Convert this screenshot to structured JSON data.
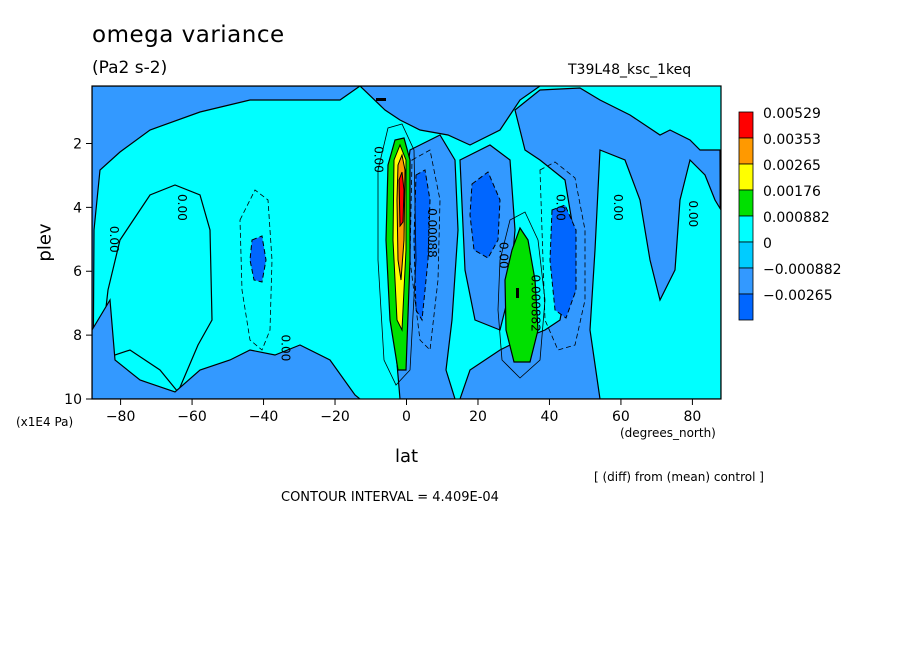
{
  "header": {
    "title": "omega variance",
    "units": "(Pa2 s-2)",
    "run": "T39L48_ksc_1keq"
  },
  "footer": {
    "diff_note": "[ (diff) from (mean) control ]",
    "contour_interval": "CONTOUR INTERVAL = 4.409E-04"
  },
  "chart_data": {
    "type": "contour",
    "xlabel": "lat",
    "xunits": "(degrees_north)",
    "ylabel": "plev",
    "yscale_label": "(x1E4 Pa)",
    "xlim": [
      -88,
      88
    ],
    "ylim": [
      10,
      0.2
    ],
    "x_ticks": [
      -80,
      -60,
      -40,
      -20,
      0,
      20,
      40,
      60,
      80
    ],
    "y_ticks": [
      2,
      4,
      6,
      8,
      10
    ],
    "contour_labels": [
      {
        "text": "0.00",
        "lat": -83,
        "plev": 5.0
      },
      {
        "text": "0.00",
        "lat": -64,
        "plev": 4.0
      },
      {
        "text": "0.00",
        "lat": -9,
        "plev": 2.5
      },
      {
        "text": "0.00",
        "lat": -35,
        "plev": 8.4
      },
      {
        "text": "0.00088",
        "lat": 6,
        "plev": 4.8
      },
      {
        "text": "0.00",
        "lat": 26,
        "plev": 5.5
      },
      {
        "text": "0.00",
        "lat": 42,
        "plev": 4.0
      },
      {
        "text": "0.000882",
        "lat": 35,
        "plev": 7.0
      },
      {
        "text": "0.00",
        "lat": 58,
        "plev": 4.0
      },
      {
        "text": "0.00",
        "lat": 79,
        "plev": 4.2
      }
    ],
    "legend": {
      "placement": "right",
      "levels": [
        {
          "label": "0.00529",
          "color": "#ff0000"
        },
        {
          "label": "0.00353",
          "color": "#ff9900"
        },
        {
          "label": "0.00265",
          "color": "#ffff00"
        },
        {
          "label": "0.00176",
          "color": "#00e000"
        },
        {
          "label": "0.000882",
          "color": "#00ffff"
        },
        {
          "label": "0",
          "color": "#00ccff"
        },
        {
          "label": "−0.000882",
          "color": "#3399ff"
        },
        {
          "label": "−0.00265",
          "color": "#0066ff"
        }
      ]
    }
  }
}
